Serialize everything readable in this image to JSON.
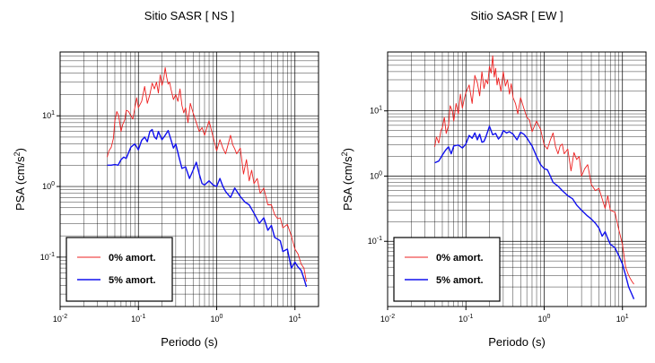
{
  "chart_data": [
    {
      "type": "line",
      "title": "Sitio SASR [ NS ]",
      "xlabel": "Periodo (s)",
      "ylabel_base": "PSA (cm/s",
      "ylabel_sup": "2",
      "ylabel_tail": ")",
      "xscale": "log",
      "yscale": "log",
      "xlim": [
        0.01,
        20
      ],
      "ylim": [
        0.02,
        80
      ],
      "grid": true,
      "legend_placement": "bottom-left",
      "x_ticks": [
        {
          "value": 0.01,
          "base": "10",
          "exp": "-2"
        },
        {
          "value": 0.1,
          "base": "10",
          "exp": "-1"
        },
        {
          "value": 1,
          "base": "10",
          "exp": "0"
        },
        {
          "value": 10,
          "base": "10",
          "exp": "1"
        }
      ],
      "y_ticks": [
        {
          "value": 0.1,
          "base": "10",
          "exp": "-1"
        },
        {
          "value": 1,
          "base": "10",
          "exp": "0"
        },
        {
          "value": 10,
          "base": "10",
          "exp": "1"
        }
      ],
      "series": [
        {
          "name": "0% amort.",
          "color": "#ee2020",
          "stroke": "thin",
          "x": [
            0.04,
            0.042,
            0.045,
            0.048,
            0.05,
            0.053,
            0.056,
            0.06,
            0.063,
            0.067,
            0.07,
            0.075,
            0.08,
            0.085,
            0.09,
            0.095,
            0.1,
            0.11,
            0.12,
            0.13,
            0.14,
            0.15,
            0.16,
            0.17,
            0.18,
            0.19,
            0.2,
            0.21,
            0.22,
            0.23,
            0.24,
            0.25,
            0.26,
            0.28,
            0.3,
            0.32,
            0.34,
            0.36,
            0.38,
            0.4,
            0.43,
            0.46,
            0.5,
            0.55,
            0.6,
            0.65,
            0.7,
            0.8,
            0.9,
            1.0,
            1.1,
            1.2,
            1.3,
            1.4,
            1.5,
            1.6,
            1.7,
            1.8,
            2.0,
            2.2,
            2.4,
            2.6,
            2.8,
            3.0,
            3.3,
            3.6,
            4.0,
            4.5,
            5.0,
            5.5,
            6.0,
            6.5,
            7.0,
            8.0,
            9.0,
            10.0,
            11.0,
            12.0,
            13.0,
            14.0
          ],
          "values": [
            2.6,
            3.2,
            3.6,
            4.8,
            8.5,
            11.5,
            10,
            6,
            7.5,
            8.8,
            12,
            11.5,
            10,
            9,
            13,
            18,
            13,
            16,
            26,
            15,
            20,
            29,
            24,
            30,
            21,
            38,
            27,
            33,
            48,
            35,
            28,
            30,
            24,
            17,
            20,
            16,
            24,
            14,
            11,
            13,
            8,
            15,
            11,
            8,
            6,
            6.8,
            5.3,
            8.5,
            5,
            3.2,
            4.6,
            3.5,
            2.9,
            3.9,
            5.3,
            3.9,
            3.4,
            2.9,
            3.5,
            1.5,
            2.4,
            1.2,
            1.7,
            1.1,
            1.3,
            0.8,
            0.95,
            0.55,
            0.55,
            0.4,
            0.35,
            0.36,
            0.26,
            0.29,
            0.2,
            0.13,
            0.11,
            0.08,
            0.07,
            0.045
          ]
        },
        {
          "name": "5% amort.",
          "color": "#1010ee",
          "stroke": "thick",
          "x": [
            0.04,
            0.045,
            0.05,
            0.055,
            0.06,
            0.065,
            0.07,
            0.08,
            0.09,
            0.1,
            0.11,
            0.12,
            0.13,
            0.14,
            0.15,
            0.16,
            0.17,
            0.18,
            0.2,
            0.22,
            0.24,
            0.26,
            0.28,
            0.3,
            0.33,
            0.36,
            0.4,
            0.45,
            0.5,
            0.55,
            0.6,
            0.65,
            0.7,
            0.8,
            0.9,
            1.0,
            1.1,
            1.2,
            1.3,
            1.5,
            1.7,
            2.0,
            2.3,
            2.6,
            3.0,
            3.5,
            4.0,
            4.5,
            5.0,
            5.5,
            6.0,
            6.5,
            7.0,
            8.0,
            9.0,
            10.0,
            11.0,
            12.0,
            13.0,
            14.0
          ],
          "values": [
            2.0,
            2.0,
            2.05,
            2.0,
            2.4,
            2.6,
            2.5,
            3.6,
            4.0,
            3.3,
            4.5,
            5.0,
            4.3,
            6.0,
            6.4,
            5.0,
            4.7,
            6.0,
            4.6,
            5.3,
            6.2,
            4.6,
            3.5,
            4.0,
            2.6,
            1.8,
            1.9,
            1.3,
            1.7,
            2.2,
            1.5,
            1.1,
            1.05,
            1.2,
            1.05,
            1.0,
            1.3,
            1.0,
            0.85,
            0.7,
            0.95,
            0.72,
            0.6,
            0.55,
            0.42,
            0.3,
            0.36,
            0.24,
            0.28,
            0.19,
            0.18,
            0.17,
            0.12,
            0.13,
            0.07,
            0.085,
            0.072,
            0.065,
            0.05,
            0.038
          ]
        }
      ]
    },
    {
      "type": "line",
      "title": "Sitio SASR [ EW ]",
      "xlabel": "Periodo (s)",
      "ylabel_base": "PSA (cm/s",
      "ylabel_sup": "2",
      "ylabel_tail": ")",
      "xscale": "log",
      "yscale": "log",
      "xlim": [
        0.01,
        20
      ],
      "ylim": [
        0.01,
        80
      ],
      "grid": true,
      "legend_placement": "bottom-left",
      "x_ticks": [
        {
          "value": 0.01,
          "base": "10",
          "exp": "-2"
        },
        {
          "value": 0.1,
          "base": "10",
          "exp": "-1"
        },
        {
          "value": 1,
          "base": "10",
          "exp": "0"
        },
        {
          "value": 10,
          "base": "10",
          "exp": "1"
        }
      ],
      "y_ticks": [
        {
          "value": 0.1,
          "base": "10",
          "exp": "-1"
        },
        {
          "value": 1,
          "base": "10",
          "exp": "0"
        },
        {
          "value": 10,
          "base": "10",
          "exp": "1"
        }
      ],
      "series": [
        {
          "name": "0% amort.",
          "color": "#ee2020",
          "stroke": "thin",
          "x": [
            0.04,
            0.042,
            0.045,
            0.048,
            0.05,
            0.053,
            0.056,
            0.06,
            0.063,
            0.067,
            0.07,
            0.075,
            0.08,
            0.085,
            0.09,
            0.095,
            0.1,
            0.11,
            0.12,
            0.13,
            0.14,
            0.15,
            0.16,
            0.17,
            0.18,
            0.19,
            0.2,
            0.21,
            0.22,
            0.23,
            0.24,
            0.25,
            0.26,
            0.28,
            0.3,
            0.32,
            0.34,
            0.36,
            0.38,
            0.4,
            0.43,
            0.46,
            0.5,
            0.55,
            0.6,
            0.65,
            0.7,
            0.8,
            0.9,
            1.0,
            1.1,
            1.2,
            1.3,
            1.4,
            1.5,
            1.6,
            1.7,
            1.8,
            2.0,
            2.2,
            2.4,
            2.6,
            2.8,
            3.0,
            3.3,
            3.6,
            4.0,
            4.5,
            5.0,
            5.5,
            6.0,
            6.5,
            7.0,
            8.0,
            9.0,
            10.0,
            11.0,
            12.0,
            13.0,
            14.0
          ],
          "values": [
            2.8,
            4.0,
            3.2,
            5.0,
            5.5,
            8.0,
            4.5,
            6.0,
            12,
            10,
            7,
            13,
            9,
            18,
            11,
            15,
            19,
            25,
            13,
            35,
            27,
            17,
            40,
            22,
            30,
            26,
            48,
            38,
            70,
            33,
            45,
            25,
            32,
            20,
            40,
            24,
            30,
            18,
            26,
            16,
            13,
            9,
            16,
            11,
            8,
            7.2,
            4.8,
            7.0,
            5.2,
            3.0,
            2.6,
            3.6,
            4.6,
            2.8,
            2.2,
            2.9,
            3.1,
            2.2,
            2.6,
            1.2,
            2.3,
            1.8,
            2.0,
            1.0,
            1.3,
            1.5,
            0.75,
            0.6,
            0.65,
            0.45,
            0.32,
            0.5,
            0.3,
            0.28,
            0.15,
            0.09,
            0.04,
            0.03,
            0.025,
            0.022
          ]
        },
        {
          "name": "5% amort.",
          "color": "#1010ee",
          "stroke": "thick",
          "x": [
            0.04,
            0.045,
            0.05,
            0.055,
            0.06,
            0.065,
            0.07,
            0.08,
            0.09,
            0.1,
            0.11,
            0.12,
            0.13,
            0.14,
            0.15,
            0.16,
            0.17,
            0.18,
            0.2,
            0.22,
            0.24,
            0.26,
            0.28,
            0.3,
            0.33,
            0.36,
            0.4,
            0.45,
            0.5,
            0.55,
            0.6,
            0.65,
            0.7,
            0.8,
            0.9,
            1.0,
            1.1,
            1.2,
            1.3,
            1.5,
            1.7,
            2.0,
            2.3,
            2.6,
            3.0,
            3.5,
            4.0,
            4.5,
            5.0,
            5.5,
            6.0,
            6.5,
            7.0,
            8.0,
            9.0,
            10.0,
            11.0,
            12.0,
            13.0,
            14.0
          ],
          "values": [
            1.6,
            1.7,
            2.1,
            2.5,
            2.8,
            2.2,
            2.9,
            3.0,
            2.7,
            3.1,
            4.2,
            3.8,
            4.6,
            3.6,
            4.4,
            3.3,
            3.4,
            4.0,
            5.8,
            4.3,
            4.5,
            3.7,
            4.1,
            5.0,
            4.6,
            4.8,
            4.4,
            3.6,
            4.7,
            4.4,
            3.9,
            3.3,
            2.9,
            2.0,
            1.5,
            1.3,
            1.25,
            1.0,
            0.8,
            0.7,
            0.6,
            0.5,
            0.45,
            0.36,
            0.3,
            0.25,
            0.22,
            0.19,
            0.16,
            0.12,
            0.14,
            0.11,
            0.09,
            0.08,
            0.06,
            0.045,
            0.03,
            0.02,
            0.016,
            0.013
          ]
        }
      ]
    }
  ]
}
